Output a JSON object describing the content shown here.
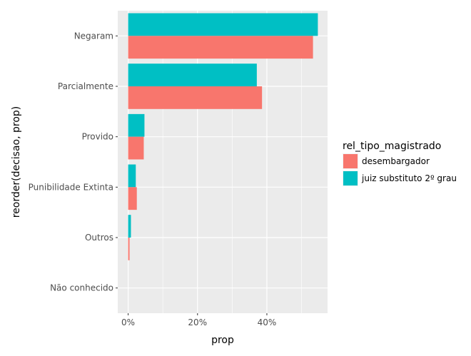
{
  "chart_data": {
    "type": "bar",
    "orientation": "horizontal",
    "categories": [
      "Negaram",
      "Parcialmente",
      "Provido",
      "Punibilidade Extinta",
      "Outros",
      "Não conhecido"
    ],
    "series": [
      {
        "name": "juiz substituto 2º grau",
        "color": "#00BFC4",
        "values": [
          0.547,
          0.371,
          0.047,
          0.022,
          0.008,
          0.0
        ]
      },
      {
        "name": "desembargador",
        "color": "#F8766D",
        "values": [
          0.533,
          0.386,
          0.045,
          0.025,
          0.004,
          0.0
        ]
      }
    ],
    "xlabel": "prop",
    "ylabel": "reorder(decisao, prop)",
    "xlim": [
      -0.03,
      0.575
    ],
    "xticks": [
      0,
      0.2,
      0.4
    ],
    "xtick_labels": [
      "0%",
      "20%",
      "40%"
    ],
    "grid": true,
    "panel_background": "#EBEBEB",
    "legend": {
      "title": "rel_tipo_magistrado",
      "position": "right",
      "entries": [
        {
          "label": "desembargador",
          "color": "#F8766D"
        },
        {
          "label": "juiz substituto 2º grau",
          "color": "#00BFC4"
        }
      ]
    }
  }
}
